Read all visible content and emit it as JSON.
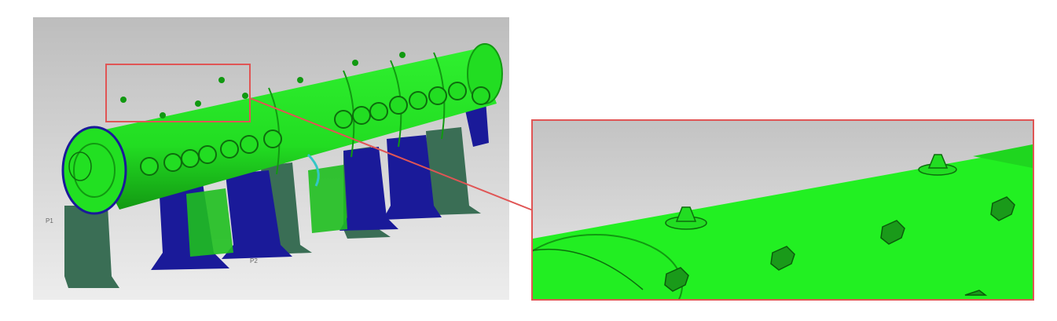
{
  "figure": {
    "main_view": {
      "callout_labels": [
        "P1",
        "P2"
      ]
    }
  },
  "colors": {
    "vessel_green": "#22ee22",
    "vessel_dark_green": "#119911",
    "saddle_blue": "#1a1a99",
    "support_gray_green": "#3a6e55",
    "background_gray": "#cfcfcf",
    "highlight_red": "#e05555"
  }
}
